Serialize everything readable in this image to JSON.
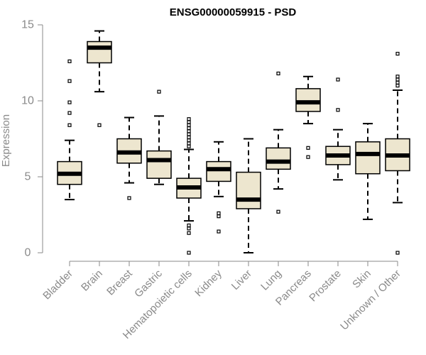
{
  "chart_data": {
    "type": "boxplot",
    "title": "ENSG00000059915 - PSD",
    "xlabel": "",
    "ylabel": "Expression",
    "ylim": [
      0,
      15
    ],
    "yticks": [
      0,
      5,
      10,
      15
    ],
    "colors": {
      "box_fill": "#ede6cf",
      "stroke": "#000000",
      "axis": "#8a8a8a"
    },
    "categories": [
      "Bladder",
      "Brain",
      "Breast",
      "Gastric",
      "Hematopoietic cells",
      "Kidney",
      "Liver",
      "Lung",
      "Pancreas",
      "Prostate",
      "Skin",
      "Unknown / Other"
    ],
    "boxes": [
      {
        "category": "Bladder",
        "whisker_low": 3.5,
        "q1": 4.5,
        "median": 5.2,
        "q3": 6.0,
        "whisker_high": 7.4,
        "outliers": [
          8.4,
          9.2,
          9.9,
          11.3,
          12.6
        ]
      },
      {
        "category": "Brain",
        "whisker_low": 10.6,
        "q1": 12.5,
        "median": 13.5,
        "q3": 13.9,
        "whisker_high": 14.6,
        "outliers": [
          8.4
        ]
      },
      {
        "category": "Breast",
        "whisker_low": 4.6,
        "q1": 5.9,
        "median": 6.6,
        "q3": 7.5,
        "whisker_high": 8.9,
        "outliers": [
          3.6
        ]
      },
      {
        "category": "Gastric",
        "whisker_low": 4.5,
        "q1": 4.9,
        "median": 6.1,
        "q3": 6.7,
        "whisker_high": 9.0,
        "outliers": [
          10.6
        ]
      },
      {
        "category": "Hematopoietic cells",
        "whisker_low": 2.1,
        "q1": 3.6,
        "median": 4.3,
        "q3": 4.9,
        "whisker_high": 6.8,
        "outliers": [
          0,
          1.3,
          1.6,
          1.8,
          7.0,
          7.2,
          7.4,
          7.6,
          7.8,
          8.0,
          8.2,
          8.4,
          8.6,
          8.8
        ]
      },
      {
        "category": "Kidney",
        "whisker_low": 3.7,
        "q1": 4.7,
        "median": 5.5,
        "q3": 6.0,
        "whisker_high": 7.3,
        "outliers": [
          1.4,
          2.4,
          2.6
        ]
      },
      {
        "category": "Liver",
        "whisker_low": 0.0,
        "q1": 2.9,
        "median": 3.5,
        "q3": 5.3,
        "whisker_high": 7.5,
        "outliers": []
      },
      {
        "category": "Lung",
        "whisker_low": 4.2,
        "q1": 5.5,
        "median": 6.0,
        "q3": 6.9,
        "whisker_high": 8.1,
        "outliers": [
          2.7,
          11.8
        ]
      },
      {
        "category": "Pancreas",
        "whisker_low": 8.5,
        "q1": 9.3,
        "median": 9.9,
        "q3": 10.8,
        "whisker_high": 11.6,
        "outliers": [
          6.3,
          6.9
        ]
      },
      {
        "category": "Prostate",
        "whisker_low": 4.8,
        "q1": 5.8,
        "median": 6.4,
        "q3": 7.0,
        "whisker_high": 8.1,
        "outliers": [
          9.4,
          11.4
        ]
      },
      {
        "category": "Skin",
        "whisker_low": 2.2,
        "q1": 5.2,
        "median": 6.5,
        "q3": 7.3,
        "whisker_high": 8.5,
        "outliers": []
      },
      {
        "category": "Unknown / Other",
        "whisker_low": 3.3,
        "q1": 5.4,
        "median": 6.4,
        "q3": 7.5,
        "whisker_high": 10.7,
        "outliers": [
          0,
          11.0,
          11.2,
          11.4,
          11.6,
          13.1
        ]
      }
    ]
  }
}
